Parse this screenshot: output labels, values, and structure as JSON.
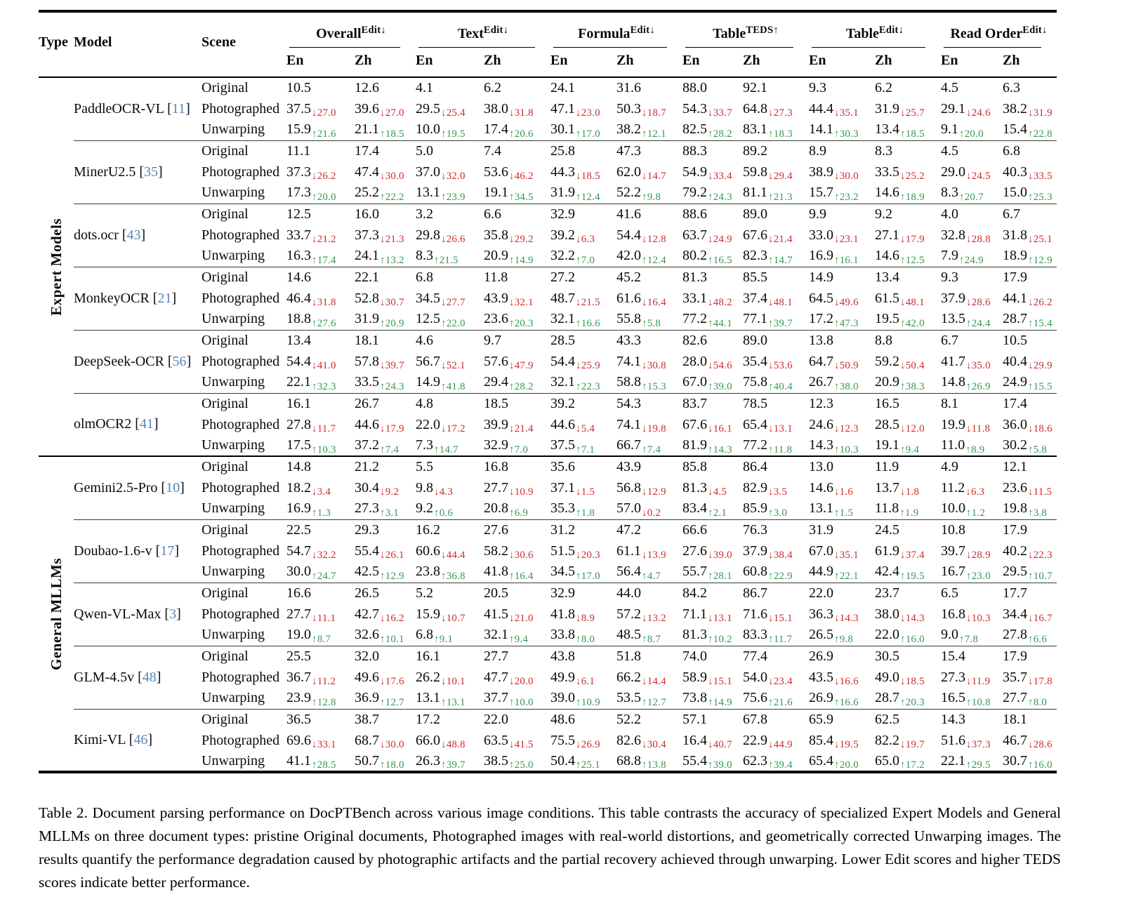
{
  "header": {
    "type": "Type",
    "model": "Model",
    "scene": "Scene",
    "subcols": [
      "En",
      "Zh"
    ],
    "groups": [
      {
        "label": "Overall",
        "sup": "Edit↓"
      },
      {
        "label": "Text",
        "sup": "Edit↓"
      },
      {
        "label": "Formula",
        "sup": "Edit↓"
      },
      {
        "label": "Table",
        "sup": "TEDS↑"
      },
      {
        "label": "Table",
        "sup": "Edit↓"
      },
      {
        "label": "Read Order",
        "sup": "Edit↓"
      }
    ]
  },
  "colors": {
    "degradation_red": "#cd2b2b",
    "recovery_green": "#339a4d",
    "citation_blue": "#5586b8"
  },
  "sections": [
    {
      "type_label": "Expert Models",
      "models": [
        {
          "name": "PaddleOCR-VL",
          "cite": "11",
          "rows": [
            {
              "scene": "Original",
              "cells": [
                "10.5",
                "12.6",
                "4.1",
                "6.2",
                "24.1",
                "31.6",
                "88.0",
                "92.1",
                "9.3",
                "6.2",
                "4.5",
                "6.3"
              ]
            },
            {
              "scene": "Photographed",
              "cells": [
                "37.5↓27.0",
                "39.6↓27.0",
                "29.5↓25.4",
                "38.0↓31.8",
                "47.1↓23.0",
                "50.3↓18.7",
                "54.3↓33.7",
                "64.8↓27.3",
                "44.4↓35.1",
                "31.9↓25.7",
                "29.1↓24.6",
                "38.2↓31.9"
              ]
            },
            {
              "scene": "Unwarping",
              "cells": [
                "15.9↑21.6",
                "21.1↑18.5",
                "10.0↑19.5",
                "17.4↑20.6",
                "30.1↑17.0",
                "38.2↑12.1",
                "82.5↑28.2",
                "83.1↑18.3",
                "14.1↑30.3",
                "13.4↑18.5",
                "9.1↑20.0",
                "15.4↑22.8"
              ]
            }
          ]
        },
        {
          "name": "MinerU2.5",
          "cite": "35",
          "rows": [
            {
              "scene": "Original",
              "cells": [
                "11.1",
                "17.4",
                "5.0",
                "7.4",
                "25.8",
                "47.3",
                "88.3",
                "89.2",
                "8.9",
                "8.3",
                "4.5",
                "6.8"
              ]
            },
            {
              "scene": "Photographed",
              "cells": [
                "37.3↓26.2",
                "47.4↓30.0",
                "37.0↓32.0",
                "53.6↓46.2",
                "44.3↓18.5",
                "62.0↓14.7",
                "54.9↓33.4",
                "59.8↓29.4",
                "38.9↓30.0",
                "33.5↓25.2",
                "29.0↓24.5",
                "40.3↓33.5"
              ]
            },
            {
              "scene": "Unwarping",
              "cells": [
                "17.3↑20.0",
                "25.2↑22.2",
                "13.1↑23.9",
                "19.1↑34.5",
                "31.9↑12.4",
                "52.2↑9.8",
                "79.2↑24.3",
                "81.1↑21.3",
                "15.7↑23.2",
                "14.6↑18.9",
                "8.3↑20.7",
                "15.0↑25.3"
              ]
            }
          ]
        },
        {
          "name": "dots.ocr",
          "cite": "43",
          "rows": [
            {
              "scene": "Original",
              "cells": [
                "12.5",
                "16.0",
                "3.2",
                "6.6",
                "32.9",
                "41.6",
                "88.6",
                "89.0",
                "9.9",
                "9.2",
                "4.0",
                "6.7"
              ]
            },
            {
              "scene": "Photographed",
              "cells": [
                "33.7↓21.2",
                "37.3↓21.3",
                "29.8↓26.6",
                "35.8↓29.2",
                "39.2↓6.3",
                "54.4↓12.8",
                "63.7↓24.9",
                "67.6↓21.4",
                "33.0↓23.1",
                "27.1↓17.9",
                "32.8↓28.8",
                "31.8↓25.1"
              ]
            },
            {
              "scene": "Unwarping",
              "cells": [
                "16.3↑17.4",
                "24.1↑13.2",
                "8.3↑21.5",
                "20.9↑14.9",
                "32.2↑7.0",
                "42.0↑12.4",
                "80.2↑16.5",
                "82.3↑14.7",
                "16.9↑16.1",
                "14.6↑12.5",
                "7.9↑24.9",
                "18.9↑12.9"
              ]
            }
          ]
        },
        {
          "name": "MonkeyOCR",
          "cite": "21",
          "rows": [
            {
              "scene": "Original",
              "cells": [
                "14.6",
                "22.1",
                "6.8",
                "11.8",
                "27.2",
                "45.2",
                "81.3",
                "85.5",
                "14.9",
                "13.4",
                "9.3",
                "17.9"
              ]
            },
            {
              "scene": "Photographed",
              "cells": [
                "46.4↓31.8",
                "52.8↓30.7",
                "34.5↓27.7",
                "43.9↓32.1",
                "48.7↓21.5",
                "61.6↓16.4",
                "33.1↓48.2",
                "37.4↓48.1",
                "64.5↓49.6",
                "61.5↓48.1",
                "37.9↓28.6",
                "44.1↓26.2"
              ]
            },
            {
              "scene": "Unwarping",
              "cells": [
                "18.8↑27.6",
                "31.9↑20.9",
                "12.5↑22.0",
                "23.6↑20.3",
                "32.1↑16.6",
                "55.8↑5.8",
                "77.2↑44.1",
                "77.1↑39.7",
                "17.2↑47.3",
                "19.5↑42.0",
                "13.5↑24.4",
                "28.7↑15.4"
              ]
            }
          ]
        },
        {
          "name": "DeepSeek-OCR",
          "cite": "56",
          "rows": [
            {
              "scene": "Original",
              "cells": [
                "13.4",
                "18.1",
                "4.6",
                "9.7",
                "28.5",
                "43.3",
                "82.6",
                "89.0",
                "13.8",
                "8.8",
                "6.7",
                "10.5"
              ]
            },
            {
              "scene": "Photographed",
              "cells": [
                "54.4↓41.0",
                "57.8↓39.7",
                "56.7↓52.1",
                "57.6↓47.9",
                "54.4↓25.9",
                "74.1↓30.8",
                "28.0↓54.6",
                "35.4↓53.6",
                "64.7↓50.9",
                "59.2↓50.4",
                "41.7↓35.0",
                "40.4↓29.9"
              ]
            },
            {
              "scene": "Unwarping",
              "cells": [
                "22.1↑32.3",
                "33.5↑24.3",
                "14.9↑41.8",
                "29.4↑28.2",
                "32.1↑22.3",
                "58.8↑15.3",
                "67.0↑39.0",
                "75.8↑40.4",
                "26.7↑38.0",
                "20.9↑38.3",
                "14.8↑26.9",
                "24.9↑15.5"
              ]
            }
          ]
        },
        {
          "name": "olmOCR2",
          "cite": "41",
          "rows": [
            {
              "scene": "Original",
              "cells": [
                "16.1",
                "26.7",
                "4.8",
                "18.5",
                "39.2",
                "54.3",
                "83.7",
                "78.5",
                "12.3",
                "16.5",
                "8.1",
                "17.4"
              ]
            },
            {
              "scene": "Photographed",
              "cells": [
                "27.8↓11.7",
                "44.6↓17.9",
                "22.0↓17.2",
                "39.9↓21.4",
                "44.6↓5.4",
                "74.1↓19.8",
                "67.6↓16.1",
                "65.4↓13.1",
                "24.6↓12.3",
                "28.5↓12.0",
                "19.9↓11.8",
                "36.0↓18.6"
              ]
            },
            {
              "scene": "Unwarping",
              "cells": [
                "17.5↑10.3",
                "37.2↑7.4",
                "7.3↑14.7",
                "32.9↑7.0",
                "37.5↑7.1",
                "66.7↑7.4",
                "81.9↑14.3",
                "77.2↑11.8",
                "14.3↑10.3",
                "19.1↑9.4",
                "11.0↑8.9",
                "30.2↑5.8"
              ]
            }
          ]
        }
      ]
    },
    {
      "type_label": "General MLLMs",
      "models": [
        {
          "name": "Gemini2.5-Pro",
          "cite": "10",
          "rows": [
            {
              "scene": "Original",
              "cells": [
                "14.8",
                "21.2",
                "5.5",
                "16.8",
                "35.6",
                "43.9",
                "85.8",
                "86.4",
                "13.0",
                "11.9",
                "4.9",
                "12.1"
              ]
            },
            {
              "scene": "Photographed",
              "cells": [
                "18.2↓3.4",
                "30.4↓9.2",
                "9.8↓4.3",
                "27.7↓10.9",
                "37.1↓1.5",
                "56.8↓12.9",
                "81.3↓4.5",
                "82.9↓3.5",
                "14.6↓1.6",
                "13.7↓1.8",
                "11.2↓6.3",
                "23.6↓11.5"
              ]
            },
            {
              "scene": "Unwarping",
              "cells": [
                "16.9↑1.3",
                "27.3↑3.1",
                "9.2↑0.6",
                "20.8↑6.9",
                "35.3↑1.8",
                "57.0↓0.2",
                "83.4↑2.1",
                "85.9↑3.0",
                "13.1↑1.5",
                "11.8↑1.9",
                "10.0↑1.2",
                "19.8↑3.8"
              ]
            }
          ]
        },
        {
          "name": "Doubao-1.6-v",
          "cite": "17",
          "rows": [
            {
              "scene": "Original",
              "cells": [
                "22.5",
                "29.3",
                "16.2",
                "27.6",
                "31.2",
                "47.2",
                "66.6",
                "76.3",
                "31.9",
                "24.5",
                "10.8",
                "17.9"
              ]
            },
            {
              "scene": "Photographed",
              "cells": [
                "54.7↓32.2",
                "55.4↓26.1",
                "60.6↓44.4",
                "58.2↓30.6",
                "51.5↓20.3",
                "61.1↓13.9",
                "27.6↓39.0",
                "37.9↓38.4",
                "67.0↓35.1",
                "61.9↓37.4",
                "39.7↓28.9",
                "40.2↓22.3"
              ]
            },
            {
              "scene": "Unwarping",
              "cells": [
                "30.0↑24.7",
                "42.5↑12.9",
                "23.8↑36.8",
                "41.8↑16.4",
                "34.5↑17.0",
                "56.4↑4.7",
                "55.7↑28.1",
                "60.8↑22.9",
                "44.9↑22.1",
                "42.4↑19.5",
                "16.7↑23.0",
                "29.5↑10.7"
              ]
            }
          ]
        },
        {
          "name": "Qwen-VL-Max",
          "cite": "3",
          "rows": [
            {
              "scene": "Original",
              "cells": [
                "16.6",
                "26.5",
                "5.2",
                "20.5",
                "32.9",
                "44.0",
                "84.2",
                "86.7",
                "22.0",
                "23.7",
                "6.5",
                "17.7"
              ]
            },
            {
              "scene": "Photographed",
              "cells": [
                "27.7↓11.1",
                "42.7↓16.2",
                "15.9↓10.7",
                "41.5↓21.0",
                "41.8↓8.9",
                "57.2↓13.2",
                "71.1↓13.1",
                "71.6↓15.1",
                "36.3↓14.3",
                "38.0↓14.3",
                "16.8↓10.3",
                "34.4↓16.7"
              ]
            },
            {
              "scene": "Unwarping",
              "cells": [
                "19.0↑8.7",
                "32.6↑10.1",
                "6.8↑9.1",
                "32.1↑9.4",
                "33.8↑8.0",
                "48.5↑8.7",
                "81.3↑10.2",
                "83.3↑11.7",
                "26.5↑9.8",
                "22.0↑16.0",
                "9.0↑7.8",
                "27.8↑6.6"
              ]
            }
          ]
        },
        {
          "name": "GLM-4.5v",
          "cite": "48",
          "rows": [
            {
              "scene": "Original",
              "cells": [
                "25.5",
                "32.0",
                "16.1",
                "27.7",
                "43.8",
                "51.8",
                "74.0",
                "77.4",
                "26.9",
                "30.5",
                "15.4",
                "17.9"
              ]
            },
            {
              "scene": "Photographed",
              "cells": [
                "36.7↓11.2",
                "49.6↓17.6",
                "26.2↓10.1",
                "47.7↓20.0",
                "49.9↓6.1",
                "66.2↓14.4",
                "58.9↓15.1",
                "54.0↓23.4",
                "43.5↓16.6",
                "49.0↓18.5",
                "27.3↓11.9",
                "35.7↓17.8"
              ]
            },
            {
              "scene": "Unwarping",
              "cells": [
                "23.9↑12.8",
                "36.9↑12.7",
                "13.1↑13.1",
                "37.7↑10.0",
                "39.0↑10.9",
                "53.5↑12.7",
                "73.8↑14.9",
                "75.6↑21.6",
                "26.9↑16.6",
                "28.7↑20.3",
                "16.5↑10.8",
                "27.7↑8.0"
              ]
            }
          ]
        },
        {
          "name": "Kimi-VL",
          "cite": "46",
          "rows": [
            {
              "scene": "Original",
              "cells": [
                "36.5",
                "38.7",
                "17.2",
                "22.0",
                "48.6",
                "52.2",
                "57.1",
                "67.8",
                "65.9",
                "62.5",
                "14.3",
                "18.1"
              ]
            },
            {
              "scene": "Photographed",
              "cells": [
                "69.6↓33.1",
                "68.7↓30.0",
                "66.0↓48.8",
                "63.5↓41.5",
                "75.5↓26.9",
                "82.6↓30.4",
                "16.4↓40.7",
                "22.9↓44.9",
                "85.4↓19.5",
                "82.2↓19.7",
                "51.6↓37.3",
                "46.7↓28.6"
              ]
            },
            {
              "scene": "Unwarping",
              "cells": [
                "41.1↑28.5",
                "50.7↑18.0",
                "26.3↑39.7",
                "38.5↑25.0",
                "50.4↑25.1",
                "68.8↑13.8",
                "55.4↑39.0",
                "62.3↑39.4",
                "65.4↑20.0",
                "65.0↑17.2",
                "22.1↑29.5",
                "30.7↑16.0"
              ]
            }
          ]
        }
      ]
    }
  ],
  "caption": "Table 2. Document parsing performance on DocPTBench across various image conditions. This table contrasts the accuracy of specialized Expert Models and General MLLMs on three document types: pristine Original documents, Photographed images with real-world distortions, and geometrically corrected Unwarping images. The results quantify the performance degradation caused by photographic artifacts and the partial recovery achieved through unwarping. Lower Edit scores and higher TEDS scores indicate better performance."
}
